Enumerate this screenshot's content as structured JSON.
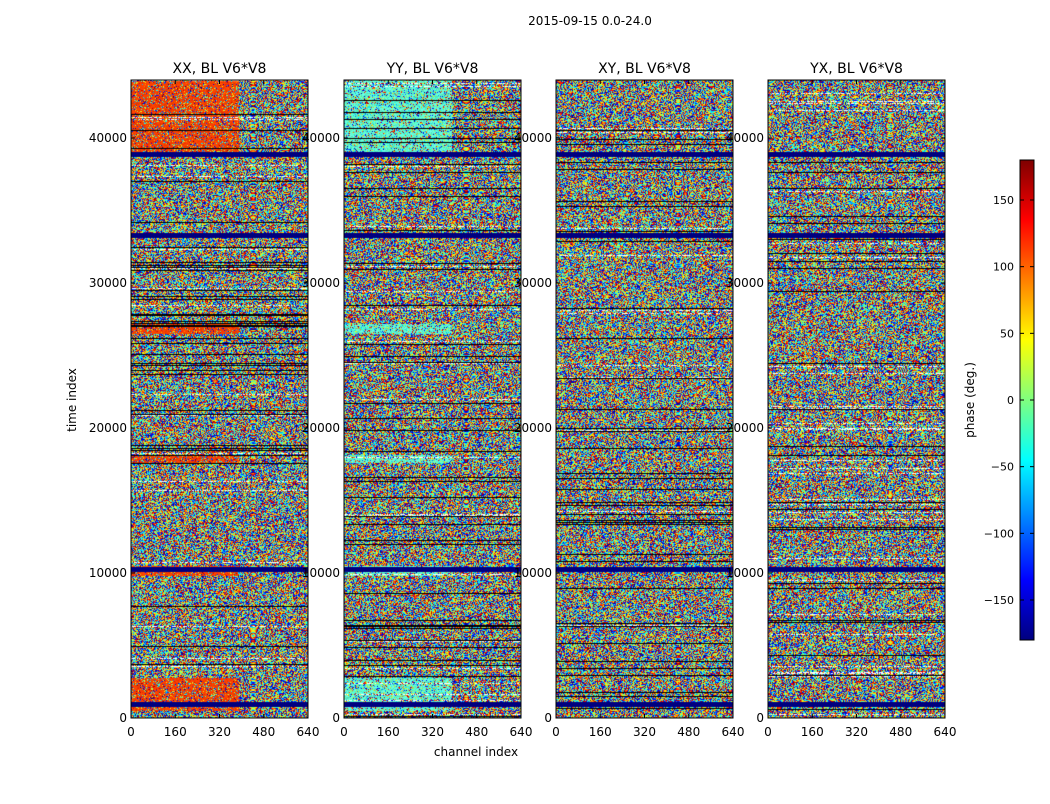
{
  "chart_data": {
    "type": "heatmap",
    "suptitle": "2015-09-15 0.0-24.0",
    "panels": [
      {
        "title": "XX, BL V6*V8",
        "has_ylabel": true,
        "has_xlabel": false
      },
      {
        "title": "YY, BL V6*V8",
        "has_ylabel": false,
        "has_xlabel": true
      },
      {
        "title": "XY, BL V6*V8",
        "has_ylabel": false,
        "has_xlabel": false
      },
      {
        "title": "YX, BL V6*V8",
        "has_ylabel": false,
        "has_xlabel": false
      }
    ],
    "xlabel": "channel index",
    "ylabel": "time index",
    "xlim": [
      0,
      640
    ],
    "ylim": [
      0,
      44000
    ],
    "x_ticks": [
      0,
      160,
      320,
      480,
      640
    ],
    "x_tick_labels": [
      "0",
      "160",
      "320",
      "480",
      "640"
    ],
    "y_ticks": [
      0,
      10000,
      20000,
      30000,
      40000
    ],
    "y_tick_labels": [
      "0",
      "10000",
      "20000",
      "30000",
      "40000"
    ],
    "colorbar": {
      "label": "phase (deg.)",
      "range": [
        -180,
        180
      ],
      "ticks": [
        -150,
        -100,
        -50,
        0,
        50,
        100,
        150
      ],
      "tick_labels": [
        "−150",
        "−100",
        "−50",
        "0",
        "50",
        "100",
        "150"
      ],
      "colormap": "jet",
      "colormap_colors": [
        "#00007f",
        "#0000ff",
        "#007fff",
        "#00ffff",
        "#7fff7f",
        "#ffff00",
        "#ff7f00",
        "#ff0000",
        "#7f0000"
      ]
    },
    "structure": {
      "strong_band_channel_cutoff": 390,
      "panel_bias_colors": [
        "#ff4000",
        "#60ffd0",
        null,
        null
      ],
      "biased_bands": [
        [
          500,
          2800
        ],
        [
          9800,
          10500
        ],
        [
          17500,
          18200
        ],
        [
          26500,
          27200
        ],
        [
          31500,
          32800
        ],
        [
          39000,
          44000
        ]
      ],
      "solid_line_times": [
        33300,
        38900,
        1000,
        10300
      ],
      "fringe_bands": [
        [
          3500,
          7000
        ],
        [
          14000,
          16000
        ],
        [
          16800,
          17600
        ],
        [
          18500,
          26000
        ],
        [
          31000,
          33000
        ],
        [
          34000,
          38500
        ]
      ]
    }
  }
}
